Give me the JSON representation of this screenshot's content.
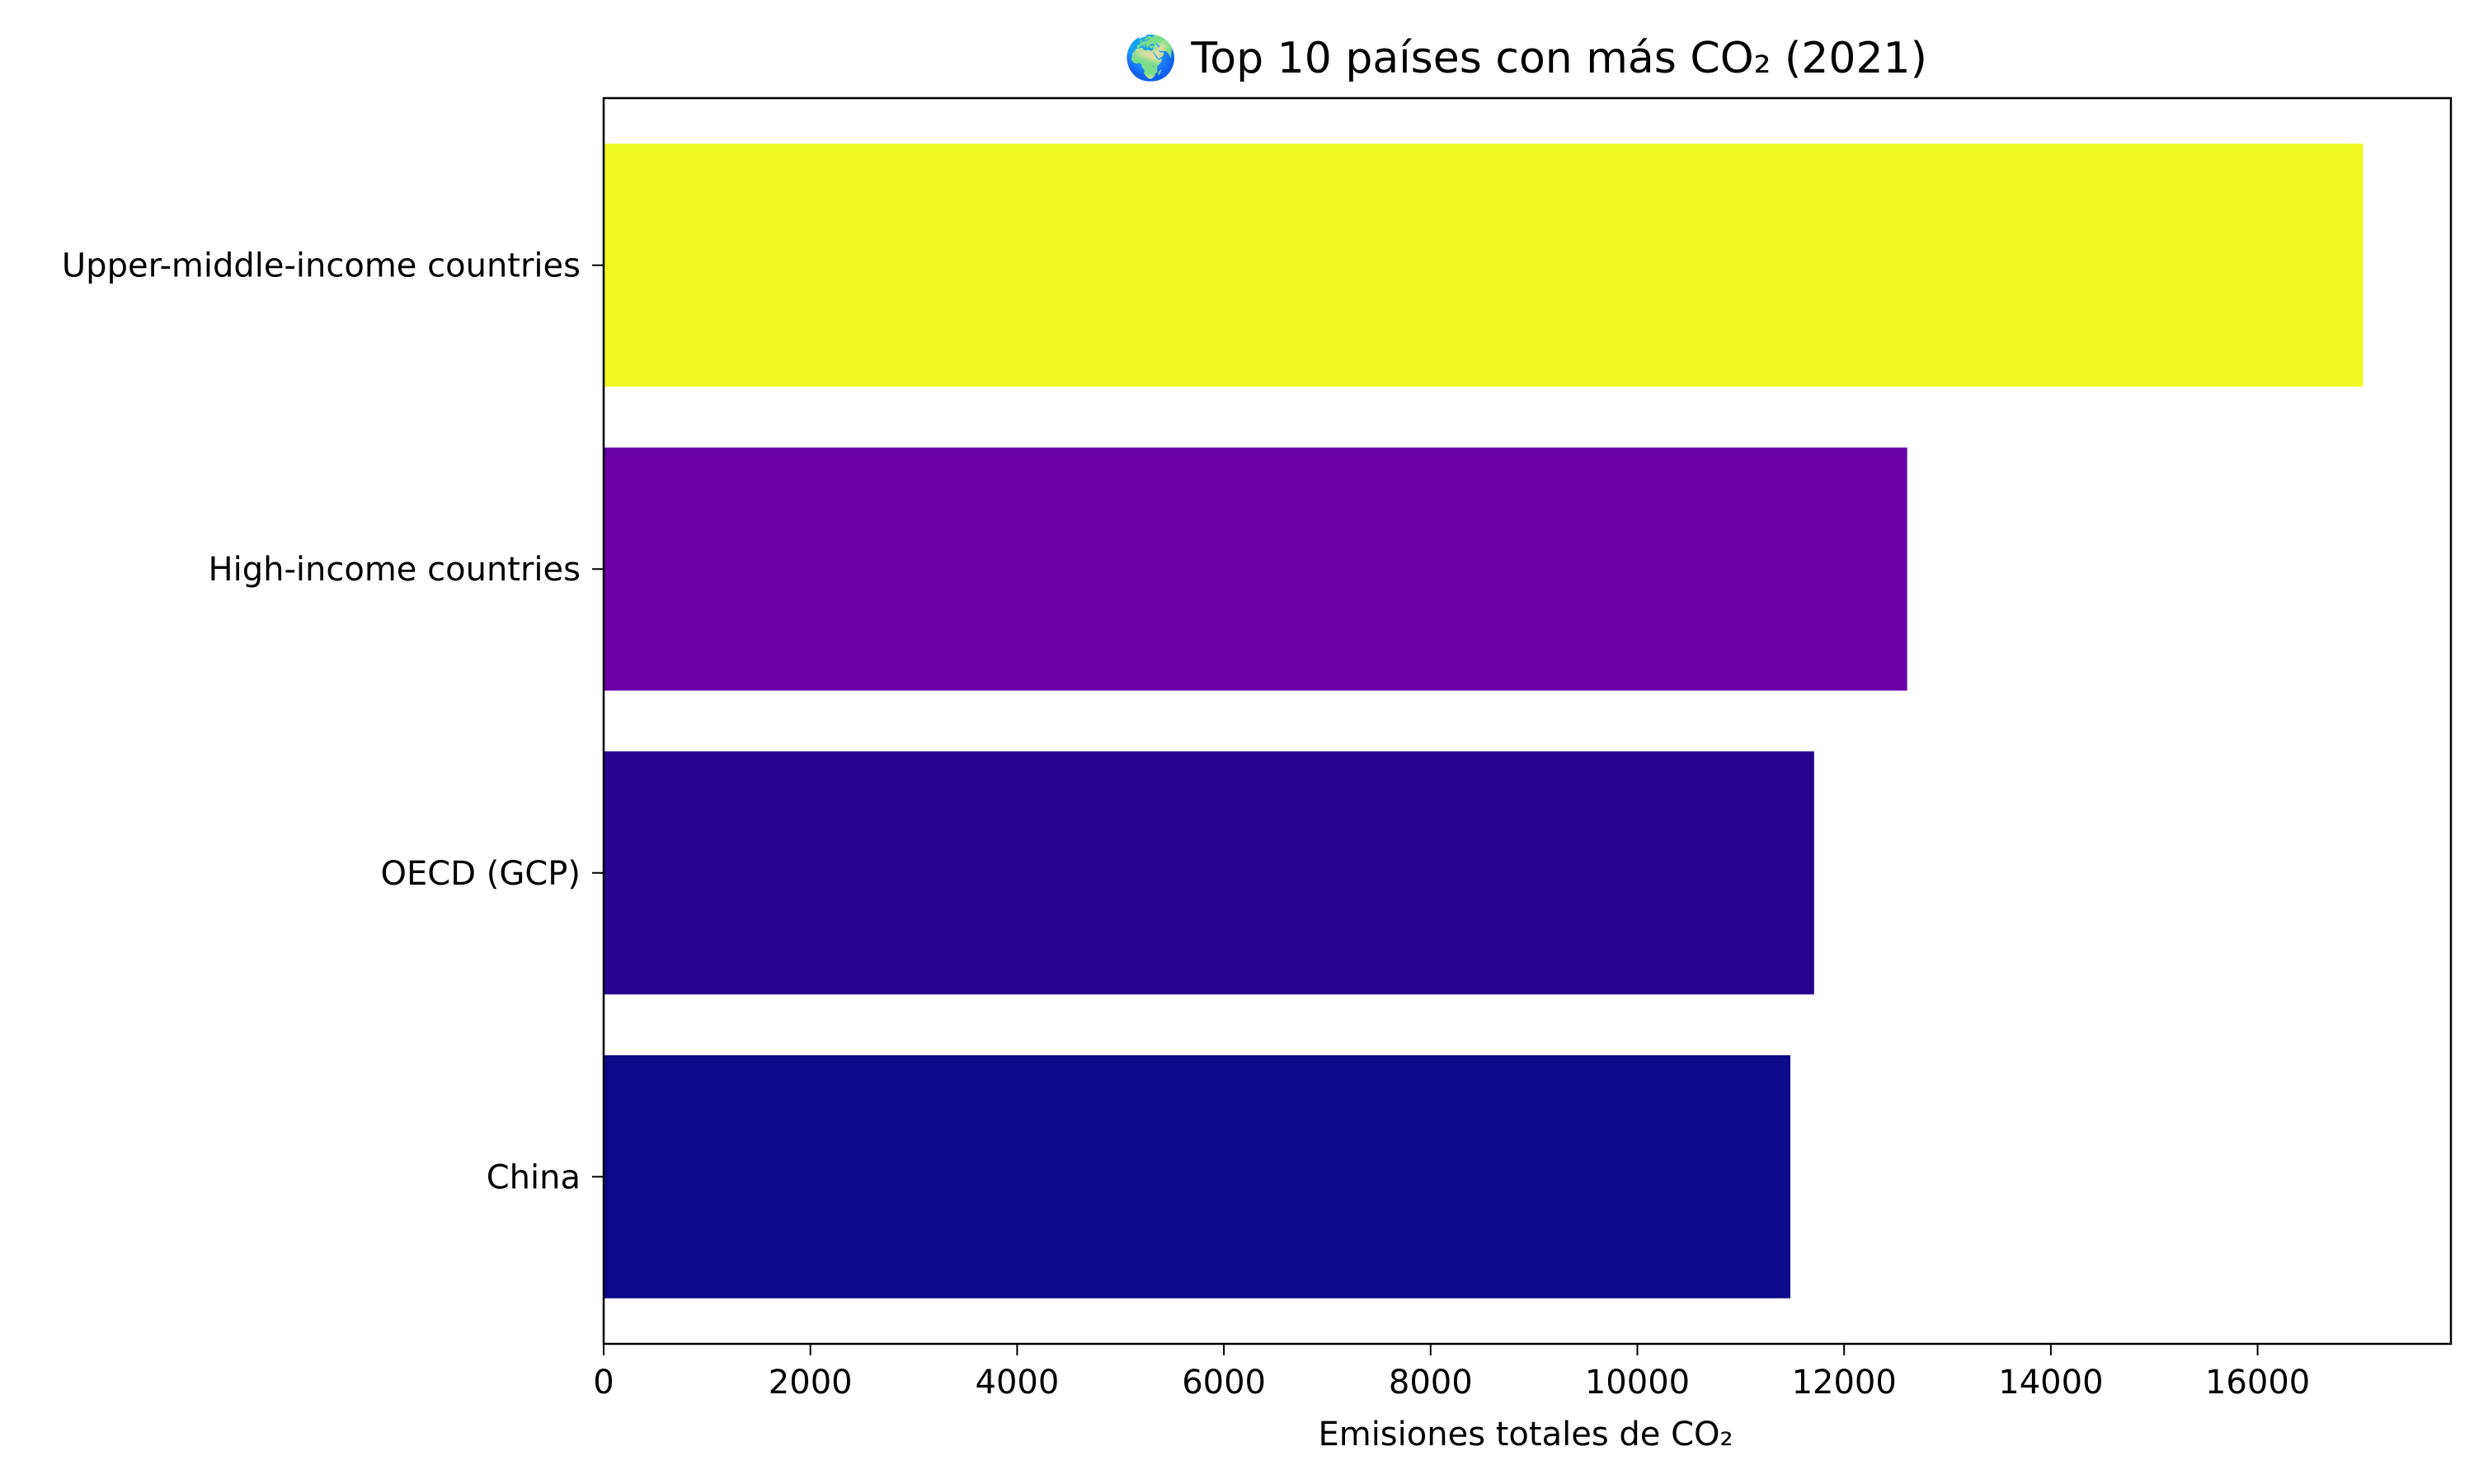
{
  "chart_data": {
    "type": "bar",
    "orientation": "horizontal",
    "title": "🌍 Top 10 países con más CO₂ (2021)",
    "xlabel": "Emisiones totales de CO₂",
    "ylabel": "",
    "categories": [
      "Upper-middle-income countries",
      "High-income countries",
      "OECD (GCP)",
      "China"
    ],
    "values": [
      17020,
      12610,
      11710,
      11480
    ],
    "colors": [
      "#f0f921",
      "#6a00a8",
      "#270592",
      "#0d0887"
    ],
    "xlim": [
      0,
      17870
    ],
    "xticks": [
      0,
      2000,
      4000,
      6000,
      8000,
      10000,
      12000,
      14000,
      16000
    ],
    "grid": false,
    "legend": "none"
  }
}
